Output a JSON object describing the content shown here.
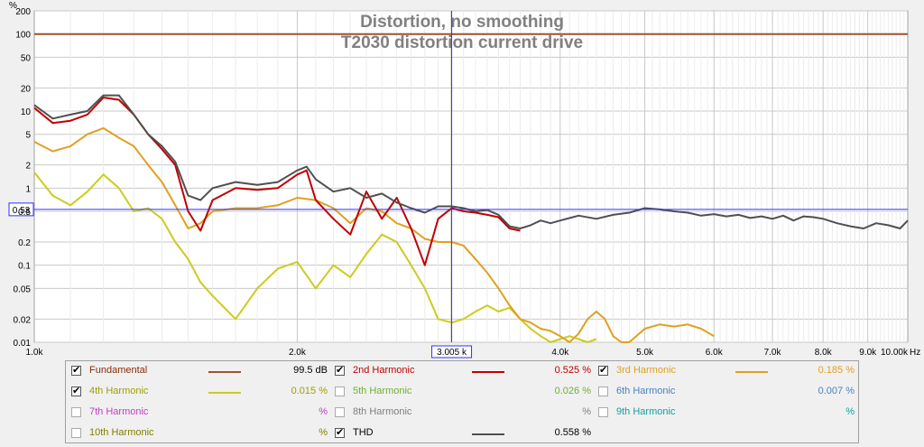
{
  "chart_data": {
    "type": "line",
    "title": "Distortion, no smoothing",
    "subtitle": "T2030 distortion current drive",
    "xlabel": "Hz",
    "ylabel": "%",
    "x_scale": "log",
    "y_scale": "log",
    "xlim": [
      1000,
      10000
    ],
    "ylim": [
      0.01,
      200
    ],
    "x_ticks": [
      1000,
      2000,
      3005,
      4000,
      5000,
      6000,
      7000,
      8000,
      9000,
      10000
    ],
    "x_tick_labels": [
      "1.0k",
      "2.0k",
      "3.005 k",
      "4.0k",
      "5.0k",
      "6.0k",
      "7.0k",
      "8.0k",
      "9.0k",
      "10.00k"
    ],
    "y_ticks": [
      200,
      100,
      50,
      20,
      10,
      5,
      2,
      1,
      0.5,
      0.2,
      0.1,
      0.05,
      0.02,
      0.01
    ],
    "y_tick_labels": [
      "200",
      "100",
      "50",
      "20",
      "10",
      "5",
      "2",
      "1",
      "0.5",
      "0.2",
      "0.1",
      "0.05",
      "0.02",
      "0.01"
    ],
    "grid": true,
    "cursor": {
      "x": 3005,
      "y": 0.53,
      "x_label": "3.005 k",
      "y_label": "0.53"
    },
    "series": [
      {
        "name": "Fundamental",
        "color": "#a0522d",
        "x": [
          1000,
          10000
        ],
        "y": [
          100,
          100
        ]
      },
      {
        "name": "THD",
        "color": "#505050",
        "x": [
          1000,
          1050,
          1100,
          1150,
          1200,
          1250,
          1300,
          1350,
          1400,
          1450,
          1500,
          1550,
          1600,
          1700,
          1800,
          1900,
          2000,
          2050,
          2100,
          2200,
          2300,
          2400,
          2500,
          2600,
          2700,
          2800,
          2900,
          3005,
          3100,
          3200,
          3300,
          3400,
          3500,
          3600,
          3700,
          3800,
          3900,
          4000,
          4200,
          4400,
          4600,
          4800,
          5000,
          5200,
          5400,
          5600,
          5800,
          6000,
          6200,
          6400,
          6600,
          6800,
          7000,
          7200,
          7400,
          7600,
          7800,
          8000,
          8300,
          8600,
          8900,
          9200,
          9500,
          9800,
          10000
        ],
        "y": [
          12,
          8,
          9,
          10,
          16,
          16,
          9,
          5,
          3.5,
          2.2,
          0.8,
          0.7,
          1.0,
          1.2,
          1.1,
          1.2,
          1.7,
          1.9,
          1.3,
          0.9,
          1.0,
          0.75,
          0.85,
          0.65,
          0.55,
          0.48,
          0.58,
          0.58,
          0.55,
          0.5,
          0.52,
          0.45,
          0.32,
          0.3,
          0.33,
          0.38,
          0.35,
          0.38,
          0.44,
          0.4,
          0.45,
          0.48,
          0.55,
          0.53,
          0.5,
          0.48,
          0.44,
          0.46,
          0.43,
          0.45,
          0.41,
          0.43,
          0.4,
          0.44,
          0.38,
          0.43,
          0.42,
          0.4,
          0.35,
          0.32,
          0.3,
          0.35,
          0.33,
          0.3,
          0.38
        ]
      },
      {
        "name": "2nd Harmonic",
        "color": "#c00000",
        "x": [
          1000,
          1050,
          1100,
          1150,
          1200,
          1250,
          1300,
          1350,
          1400,
          1450,
          1500,
          1550,
          1600,
          1700,
          1800,
          1900,
          2000,
          2050,
          2100,
          2200,
          2300,
          2400,
          2500,
          2600,
          2700,
          2800,
          2900,
          3005,
          3100,
          3200,
          3300,
          3400,
          3500,
          3600
        ],
        "y": [
          11,
          7,
          7.5,
          9,
          15,
          14,
          9,
          5,
          3.2,
          2.0,
          0.5,
          0.28,
          0.7,
          1.0,
          0.95,
          1.0,
          1.5,
          1.7,
          0.7,
          0.4,
          0.25,
          0.9,
          0.4,
          0.75,
          0.3,
          0.1,
          0.4,
          0.55,
          0.5,
          0.48,
          0.45,
          0.42,
          0.3,
          0.28
        ]
      },
      {
        "name": "3rd Harmonic",
        "color": "#e0a020",
        "x": [
          1000,
          1050,
          1100,
          1150,
          1200,
          1250,
          1300,
          1350,
          1400,
          1450,
          1500,
          1550,
          1600,
          1700,
          1800,
          1900,
          2000,
          2100,
          2200,
          2300,
          2400,
          2500,
          2600,
          2700,
          2800,
          2900,
          3005,
          3100,
          3200,
          3300,
          3400,
          3500,
          3600,
          3700,
          3800,
          3900,
          4000,
          4100,
          4200,
          4300,
          4400,
          4500,
          4600,
          4700,
          4800,
          5000,
          5200,
          5400,
          5600,
          5800,
          6000
        ],
        "y": [
          4,
          3,
          3.5,
          5,
          6,
          4.5,
          3.5,
          2,
          1.2,
          0.6,
          0.3,
          0.35,
          0.5,
          0.55,
          0.55,
          0.6,
          0.75,
          0.7,
          0.55,
          0.35,
          0.55,
          0.5,
          0.35,
          0.3,
          0.22,
          0.2,
          0.2,
          0.18,
          0.12,
          0.08,
          0.05,
          0.03,
          0.02,
          0.018,
          0.015,
          0.014,
          0.012,
          0.01,
          0.013,
          0.02,
          0.025,
          0.02,
          0.012,
          0.01,
          0.01,
          0.015,
          0.017,
          0.016,
          0.017,
          0.015,
          0.012
        ]
      },
      {
        "name": "4th Harmonic",
        "color": "#cccc20",
        "x": [
          1000,
          1050,
          1100,
          1150,
          1200,
          1250,
          1300,
          1350,
          1400,
          1450,
          1500,
          1550,
          1600,
          1700,
          1800,
          1900,
          2000,
          2100,
          2200,
          2300,
          2400,
          2500,
          2600,
          2700,
          2800,
          2900,
          3005,
          3100,
          3200,
          3300,
          3400,
          3500,
          3600,
          3700,
          3800,
          3900,
          4000,
          4100,
          4200,
          4300,
          4400
        ],
        "y": [
          1.6,
          0.8,
          0.6,
          0.9,
          1.5,
          1.0,
          0.5,
          0.55,
          0.4,
          0.2,
          0.12,
          0.06,
          0.04,
          0.02,
          0.05,
          0.09,
          0.11,
          0.05,
          0.1,
          0.07,
          0.14,
          0.25,
          0.2,
          0.1,
          0.05,
          0.02,
          0.018,
          0.02,
          0.025,
          0.03,
          0.025,
          0.028,
          0.02,
          0.015,
          0.012,
          0.01,
          0.011,
          0.012,
          0.011,
          0.01,
          0.011
        ]
      }
    ]
  },
  "legend": [
    {
      "name": "Fundamental",
      "checked": true,
      "color": "#a0522d",
      "value": "99.5 dB",
      "name_color": "#8b2a0a",
      "value_color": "#000000",
      "col": 0,
      "row": 0
    },
    {
      "name": "2nd Harmonic",
      "checked": true,
      "color": "#c00000",
      "value": "0.525 %",
      "name_color": "#c00000",
      "value_color": "#c00000",
      "col": 1,
      "row": 0
    },
    {
      "name": "3rd Harmonic",
      "checked": true,
      "color": "#e0a020",
      "value": "0.185 %",
      "name_color": "#e0a020",
      "value_color": "#e0a020",
      "col": 2,
      "row": 0
    },
    {
      "name": "4th Harmonic",
      "checked": true,
      "color": "#cccc20",
      "value": "0.015 %",
      "name_color": "#a0a000",
      "value_color": "#a0a000",
      "col": 0,
      "row": 1
    },
    {
      "name": "5th Harmonic",
      "checked": false,
      "color": "",
      "value": "0.026 %",
      "name_color": "#70b030",
      "value_color": "#70b030",
      "col": 1,
      "row": 1
    },
    {
      "name": "6th Harmonic",
      "checked": false,
      "color": "",
      "value": "0.007 %",
      "name_color": "#4a80c0",
      "value_color": "#4a80c0",
      "col": 2,
      "row": 1
    },
    {
      "name": "7th Harmonic",
      "checked": false,
      "color": "",
      "value": "%",
      "name_color": "#c040c0",
      "value_color": "#c040c0",
      "col": 0,
      "row": 2
    },
    {
      "name": "8th Harmonic",
      "checked": false,
      "color": "",
      "value": "%",
      "name_color": "#808080",
      "value_color": "#808080",
      "col": 1,
      "row": 2
    },
    {
      "name": "9th Harmonic",
      "checked": false,
      "color": "",
      "value": "%",
      "name_color": "#10a0a0",
      "value_color": "#10a0a0",
      "col": 2,
      "row": 2
    },
    {
      "name": "10th Harmonic",
      "checked": false,
      "color": "",
      "value": "%",
      "name_color": "#808000",
      "value_color": "#808000",
      "col": 0,
      "row": 3
    },
    {
      "name": "THD",
      "checked": true,
      "color": "#505050",
      "value": "0.558 %",
      "name_color": "#000000",
      "value_color": "#000000",
      "col": 1,
      "row": 3
    }
  ]
}
